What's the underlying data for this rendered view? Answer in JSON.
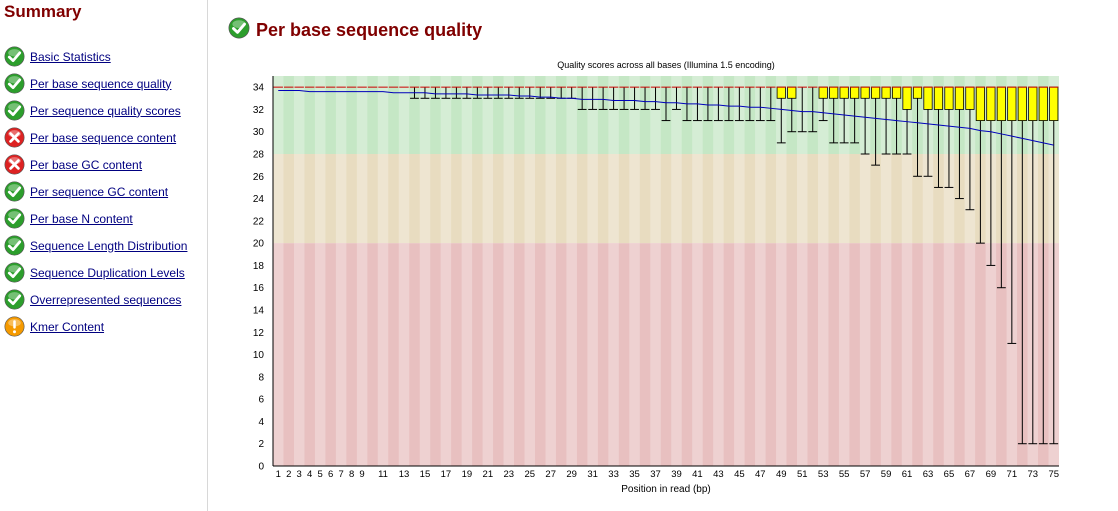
{
  "summary": {
    "title": "Summary",
    "items": [
      {
        "label": "Basic Statistics",
        "status": "pass"
      },
      {
        "label": "Per base sequence quality",
        "status": "pass"
      },
      {
        "label": "Per sequence quality scores",
        "status": "pass"
      },
      {
        "label": "Per base sequence content",
        "status": "fail"
      },
      {
        "label": "Per base GC content",
        "status": "fail"
      },
      {
        "label": "Per sequence GC content",
        "status": "pass"
      },
      {
        "label": "Per base N content",
        "status": "pass"
      },
      {
        "label": "Sequence Length Distribution",
        "status": "pass"
      },
      {
        "label": "Sequence Duplication Levels",
        "status": "pass"
      },
      {
        "label": "Overrepresented sequences",
        "status": "pass"
      },
      {
        "label": "Kmer Content",
        "status": "warn"
      }
    ]
  },
  "module": {
    "title": "Per base sequence quality",
    "status": "pass"
  },
  "colors": {
    "pass": "#2c9e2c",
    "fail": "#dd2222",
    "warn": "#f59a00",
    "title": "#800000",
    "link": "#000080",
    "band_good": "#c5e7c5",
    "band_ok": "#e8dcc0",
    "band_poor": "#e8c0c0",
    "box": "#ffff00",
    "mean": "#0000bb",
    "median": "#cc0000"
  },
  "chart_data": {
    "type": "boxplot",
    "title": "Quality scores across all bases (Illumina 1.5 encoding)",
    "xlabel": "Position in read (bp)",
    "ylabel": "",
    "ylim": [
      0,
      35
    ],
    "yticks": [
      0,
      2,
      4,
      6,
      8,
      10,
      12,
      14,
      16,
      18,
      20,
      22,
      24,
      26,
      28,
      30,
      32,
      34
    ],
    "xtick_labels": [
      "1",
      "2",
      "3",
      "4",
      "5",
      "6",
      "7",
      "8",
      "9",
      "11",
      "13",
      "15",
      "17",
      "19",
      "21",
      "23",
      "25",
      "27",
      "29",
      "31",
      "33",
      "35",
      "37",
      "39",
      "41",
      "43",
      "45",
      "47",
      "49",
      "51",
      "53",
      "55",
      "57",
      "59",
      "61",
      "63",
      "65",
      "67",
      "69",
      "71",
      "73",
      "75"
    ],
    "bands": [
      {
        "from": 28,
        "to": 35,
        "zone": "good"
      },
      {
        "from": 20,
        "to": 28,
        "zone": "ok"
      },
      {
        "from": 0,
        "to": 20,
        "zone": "poor"
      }
    ],
    "positions": [
      1,
      2,
      3,
      4,
      5,
      6,
      7,
      8,
      9,
      10,
      11,
      12,
      13,
      14,
      15,
      16,
      17,
      18,
      19,
      20,
      21,
      22,
      23,
      24,
      25,
      26,
      27,
      28,
      29,
      30,
      31,
      32,
      33,
      34,
      35,
      36,
      37,
      38,
      39,
      40,
      41,
      42,
      43,
      44,
      45,
      46,
      47,
      48,
      49,
      50,
      51,
      52,
      53,
      54,
      55,
      56,
      57,
      58,
      59,
      60,
      61,
      62,
      63,
      64,
      65,
      66,
      67,
      68,
      69,
      70,
      71,
      72,
      73,
      74,
      75
    ],
    "median": [
      34,
      34,
      34,
      34,
      34,
      34,
      34,
      34,
      34,
      34,
      34,
      34,
      34,
      34,
      34,
      34,
      34,
      34,
      34,
      34,
      34,
      34,
      34,
      34,
      34,
      34,
      34,
      34,
      34,
      34,
      34,
      34,
      34,
      34,
      34,
      34,
      34,
      34,
      34,
      34,
      34,
      34,
      34,
      34,
      34,
      34,
      34,
      34,
      34,
      34,
      34,
      34,
      34,
      34,
      34,
      34,
      34,
      34,
      34,
      34,
      34,
      34,
      34,
      34,
      34,
      34,
      34,
      34,
      34,
      34,
      34,
      34,
      34,
      34,
      34
    ],
    "q1": [
      34,
      34,
      34,
      34,
      34,
      34,
      34,
      34,
      34,
      34,
      34,
      34,
      34,
      34,
      34,
      34,
      34,
      34,
      34,
      34,
      34,
      34,
      34,
      34,
      34,
      34,
      34,
      34,
      34,
      34,
      34,
      34,
      34,
      34,
      34,
      34,
      34,
      34,
      34,
      34,
      34,
      34,
      34,
      34,
      34,
      34,
      34,
      34,
      33,
      33,
      34,
      34,
      33,
      33,
      33,
      33,
      33,
      33,
      33,
      33,
      32,
      33,
      32,
      32,
      32,
      32,
      32,
      31,
      31,
      31,
      31,
      31,
      31,
      31,
      31
    ],
    "q3": [
      34,
      34,
      34,
      34,
      34,
      34,
      34,
      34,
      34,
      34,
      34,
      34,
      34,
      34,
      34,
      34,
      34,
      34,
      34,
      34,
      34,
      34,
      34,
      34,
      34,
      34,
      34,
      34,
      34,
      34,
      34,
      34,
      34,
      34,
      34,
      34,
      34,
      34,
      34,
      34,
      34,
      34,
      34,
      34,
      34,
      34,
      34,
      34,
      34,
      34,
      34,
      34,
      34,
      34,
      34,
      34,
      34,
      34,
      34,
      34,
      34,
      34,
      34,
      34,
      34,
      34,
      34,
      34,
      34,
      34,
      34,
      34,
      34,
      34,
      34
    ],
    "lower_whisker": [
      34,
      34,
      34,
      34,
      34,
      34,
      34,
      34,
      34,
      34,
      34,
      34,
      34,
      33,
      33,
      33,
      33,
      33,
      33,
      33,
      33,
      33,
      33,
      33,
      33,
      33,
      33,
      33,
      33,
      32,
      32,
      32,
      32,
      32,
      32,
      32,
      32,
      31,
      32,
      31,
      31,
      31,
      31,
      31,
      31,
      31,
      31,
      31,
      29,
      30,
      30,
      30,
      31,
      29,
      29,
      29,
      28,
      27,
      28,
      28,
      28,
      26,
      26,
      25,
      25,
      24,
      23,
      20,
      18,
      16,
      11,
      2,
      2,
      2,
      2
    ],
    "upper_whisker": [
      34,
      34,
      34,
      34,
      34,
      34,
      34,
      34,
      34,
      34,
      34,
      34,
      34,
      34,
      34,
      34,
      34,
      34,
      34,
      34,
      34,
      34,
      34,
      34,
      34,
      34,
      34,
      34,
      34,
      34,
      34,
      34,
      34,
      34,
      34,
      34,
      34,
      34,
      34,
      34,
      34,
      34,
      34,
      34,
      34,
      34,
      34,
      34,
      34,
      34,
      34,
      34,
      34,
      34,
      34,
      34,
      34,
      34,
      34,
      34,
      34,
      34,
      34,
      34,
      34,
      34,
      34,
      34,
      34,
      34,
      34,
      34,
      34,
      34,
      34
    ],
    "mean": [
      33.7,
      33.7,
      33.7,
      33.6,
      33.6,
      33.6,
      33.6,
      33.6,
      33.6,
      33.6,
      33.6,
      33.5,
      33.5,
      33.5,
      33.5,
      33.4,
      33.4,
      33.4,
      33.4,
      33.3,
      33.3,
      33.3,
      33.3,
      33.2,
      33.2,
      33.1,
      33.1,
      33.0,
      33.0,
      32.9,
      32.9,
      32.9,
      32.8,
      32.8,
      32.8,
      32.7,
      32.7,
      32.6,
      32.6,
      32.5,
      32.5,
      32.4,
      32.4,
      32.3,
      32.3,
      32.2,
      32.2,
      32.1,
      32.0,
      31.9,
      31.8,
      31.8,
      31.7,
      31.6,
      31.5,
      31.4,
      31.3,
      31.2,
      31.1,
      31.0,
      30.9,
      30.8,
      30.7,
      30.6,
      30.5,
      30.4,
      30.3,
      30.1,
      30.0,
      29.8,
      29.6,
      29.4,
      29.2,
      29.0,
      28.8
    ]
  }
}
